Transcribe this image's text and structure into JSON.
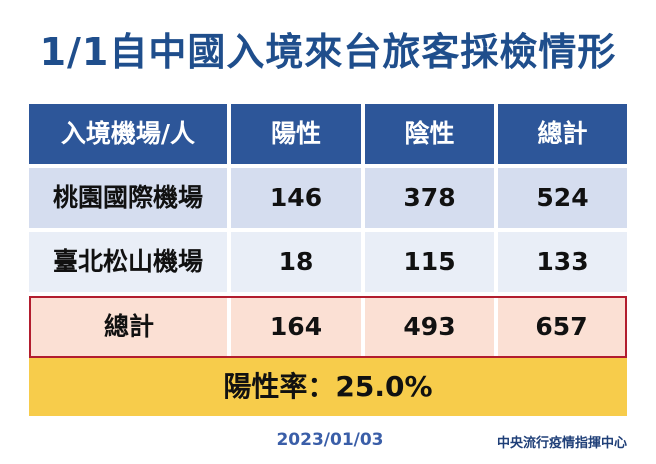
{
  "title": "1/1自中國入境來台旅客採檢情形",
  "table": {
    "headers": [
      "入境機場/人",
      "陽性",
      "陰性",
      "總計"
    ],
    "rows": [
      [
        "桃園國際機場",
        "146",
        "378",
        "524"
      ],
      [
        "臺北松山機場",
        "18",
        "115",
        "133"
      ]
    ],
    "total": [
      "總計",
      "164",
      "493",
      "657"
    ]
  },
  "positive_rate": "陽性率：25.0%",
  "date": "2023/01/03",
  "organization": "中央流行疫情指揮中心",
  "colors": {
    "title": "#1f4e8c",
    "header_bg": "#2d5699",
    "row1_bg": "#d5ddef",
    "row2_bg": "#e9eef7",
    "total_bg": "#fbe0d4",
    "total_border": "#b21d2e",
    "rate_bg": "#f7cc4b"
  }
}
